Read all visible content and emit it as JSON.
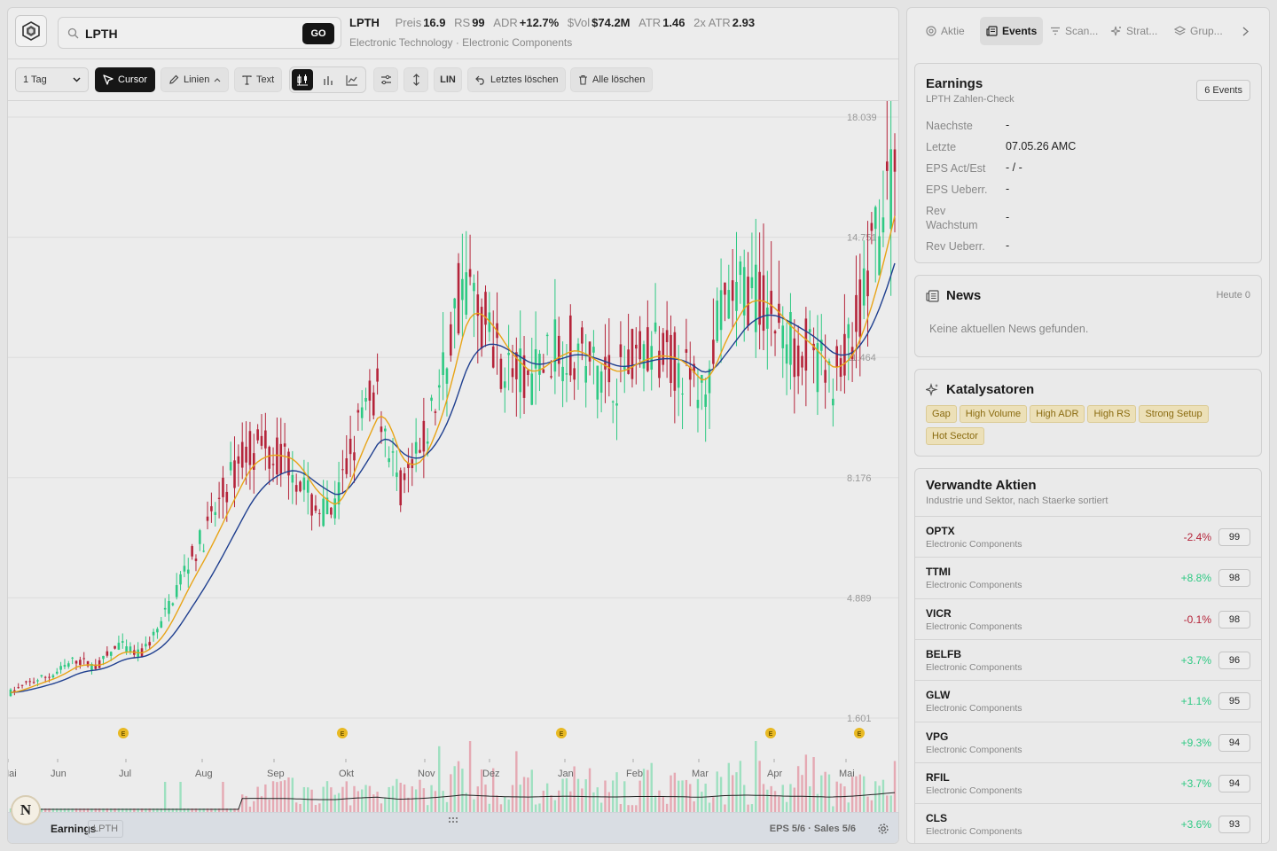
{
  "search": {
    "value": "LPTH",
    "go_label": "GO"
  },
  "quote": {
    "ticker": "LPTH",
    "price_label": "Preis",
    "price": "16.9",
    "rs_label": "RS",
    "rs": "99",
    "adr_label": "ADR",
    "adr": "+12.7%",
    "svol_label": "$Vol",
    "svol": "$74.2M",
    "atr_label": "ATR",
    "atr": "1.46",
    "atr2_label": "2x ATR",
    "atr2": "2.93",
    "sector": "Electronic Technology · Electronic Components"
  },
  "toolbar": {
    "timeframe": "1 Tag",
    "timeframe_options": [
      "1 Tag"
    ],
    "cursor": "Cursor",
    "lines": "Linien",
    "text": "Text",
    "scale": "LIN",
    "undo": "Letztes löschen",
    "clear": "Alle löschen"
  },
  "chart_data": {
    "type": "candlestick",
    "ticker": "LPTH",
    "y_ticks": [
      "18.039",
      "14.751",
      "11.464",
      "8.176",
      "4.889",
      "1.601"
    ],
    "ylim": [
      1.601,
      18.039
    ],
    "x_ticks": [
      "Mai",
      "Jun",
      "Jul",
      "Aug",
      "Sep",
      "Okt",
      "Nov",
      "Dez",
      "Jan",
      "Feb",
      "Mar",
      "Apr",
      "Mai"
    ],
    "earnings_marker": "E",
    "earnings_markers_count": 5,
    "series": [
      {
        "name": "fast-ma",
        "color": "#e8a417"
      },
      {
        "name": "slow-ma",
        "color": "#1f3f8f"
      }
    ],
    "close_path": [
      2.3,
      2.6,
      2.8,
      3.2,
      3.0,
      3.6,
      3.3,
      4.2,
      5.6,
      6.6,
      7.9,
      9.0,
      8.9,
      8.6,
      7.4,
      7.2,
      9.4,
      10.6,
      7.8,
      8.8,
      10.9,
      13.7,
      12.3,
      11.2,
      10.8,
      11.6,
      11.8,
      11.2,
      10.9,
      11.5,
      11.6,
      11.3,
      10.4,
      12.6,
      13.4,
      12.9,
      12.0,
      11.6,
      10.8,
      11.9,
      14.2,
      16.9
    ],
    "volume_present": true
  },
  "bottombar": {
    "title": "Earnings",
    "ticker_pill": "LPTH",
    "eps_sales": "EPS 5/6 · Sales 5/6"
  },
  "avatar": {
    "letter": "N"
  },
  "tabs": [
    "Aktie",
    "Events",
    "Scan...",
    "Strat...",
    "Grup..."
  ],
  "earnings": {
    "title": "Earnings",
    "subtitle": "LPTH Zahlen-Check",
    "badge": "6 Events",
    "rows": [
      {
        "k": "Naechste",
        "v": "-"
      },
      {
        "k": "Letzte",
        "v": "07.05.26 AMC"
      },
      {
        "k": "EPS Act/Est",
        "v": "- / -"
      },
      {
        "k": "EPS Ueberr.",
        "v": "-"
      },
      {
        "k": "Rev Wachstum",
        "v": "-"
      },
      {
        "k": "Rev Ueberr.",
        "v": "-"
      }
    ]
  },
  "news": {
    "title": "News",
    "today": "Heute 0",
    "empty": "Keine aktuellen News gefunden."
  },
  "catalysts": {
    "title": "Katalysatoren",
    "tags": [
      "Gap",
      "High Volume",
      "High ADR",
      "High RS",
      "Strong Setup",
      "Hot Sector"
    ]
  },
  "related": {
    "title": "Verwandte Aktien",
    "subtitle": "Industrie und Sektor, nach Staerke sortiert",
    "rows": [
      {
        "ticker": "OPTX",
        "industry": "Electronic Components",
        "change": "-2.4%",
        "rs": "99",
        "positive": false
      },
      {
        "ticker": "TTMI",
        "industry": "Electronic Components",
        "change": "+8.8%",
        "rs": "98",
        "positive": true
      },
      {
        "ticker": "VICR",
        "industry": "Electronic Components",
        "change": "-0.1%",
        "rs": "98",
        "positive": false
      },
      {
        "ticker": "BELFB",
        "industry": "Electronic Components",
        "change": "+3.7%",
        "rs": "96",
        "positive": true
      },
      {
        "ticker": "GLW",
        "industry": "Electronic Components",
        "change": "+1.1%",
        "rs": "95",
        "positive": true
      },
      {
        "ticker": "VPG",
        "industry": "Electronic Components",
        "change": "+9.3%",
        "rs": "94",
        "positive": true
      },
      {
        "ticker": "RFIL",
        "industry": "Electronic Components",
        "change": "+3.7%",
        "rs": "94",
        "positive": true
      },
      {
        "ticker": "CLS",
        "industry": "Electronic Components",
        "change": "+3.6%",
        "rs": "93",
        "positive": true
      }
    ]
  },
  "colors": {
    "up": "#2ec983",
    "down": "#b5243a",
    "up_vol": "#9ee0c0",
    "down_vol": "#e5a9b3",
    "marker": "#e8b923"
  }
}
